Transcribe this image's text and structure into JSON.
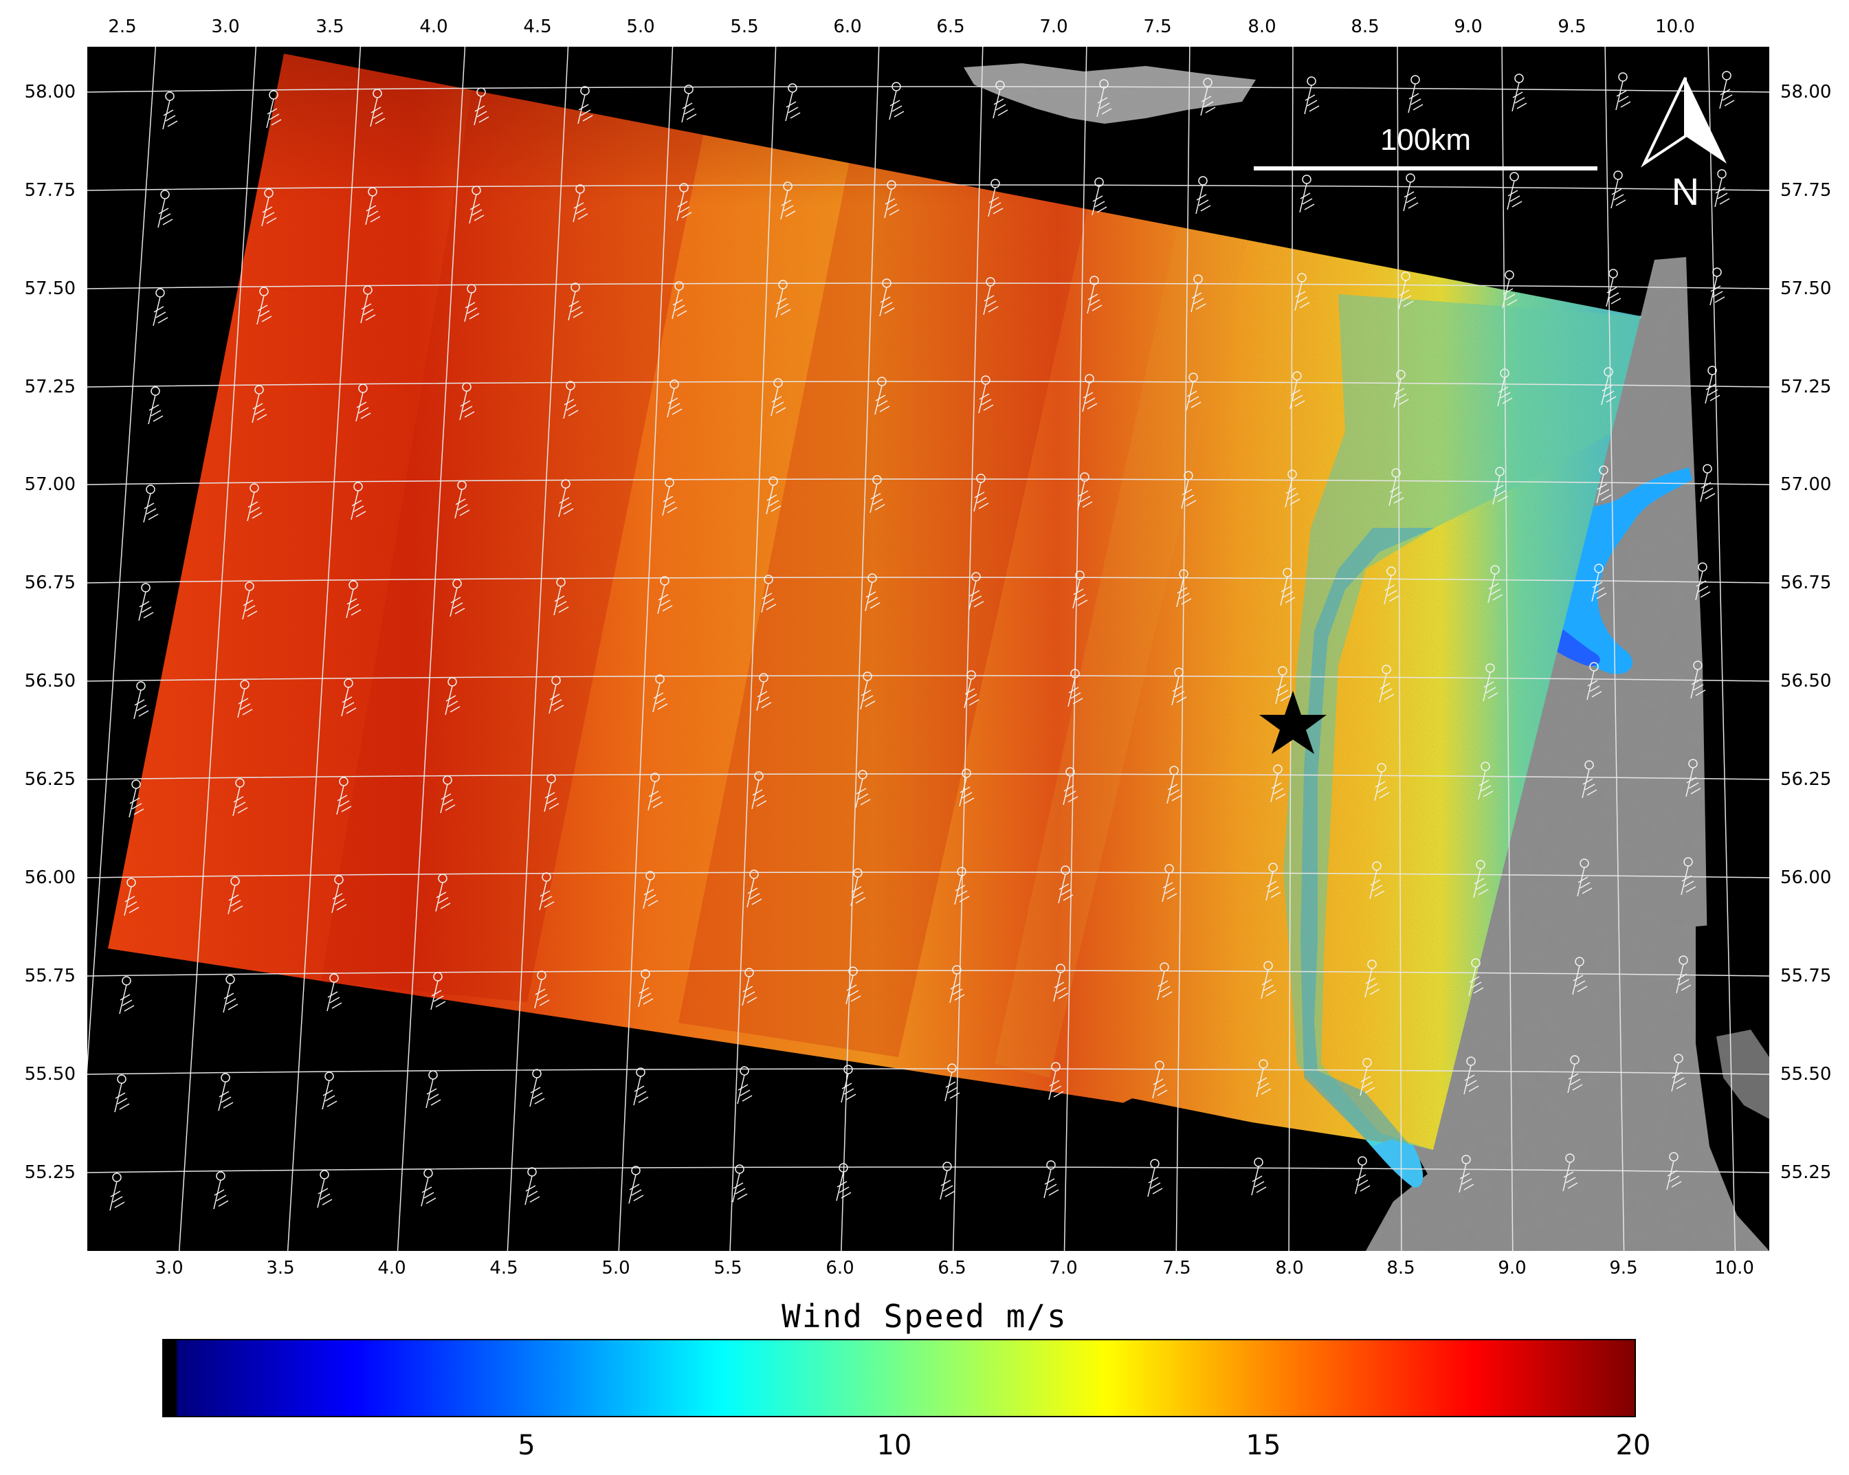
{
  "figure": {
    "top_lon_ticks": [
      "2.5",
      "3.0",
      "3.5",
      "4.0",
      "4.5",
      "5.0",
      "5.5",
      "6.0",
      "6.5",
      "7.0",
      "7.5",
      "8.0",
      "8.5",
      "9.0",
      "9.5",
      "10.0"
    ],
    "bottom_lon_ticks": [
      "3.0",
      "3.5",
      "4.0",
      "4.5",
      "5.0",
      "5.5",
      "6.0",
      "6.5",
      "7.0",
      "7.5",
      "8.0",
      "8.5",
      "9.0",
      "9.5",
      "10.0"
    ],
    "lat_ticks": [
      "58.00",
      "57.75",
      "57.50",
      "57.25",
      "57.00",
      "56.75",
      "56.50",
      "56.25",
      "56.00",
      "55.75",
      "55.50",
      "55.25"
    ],
    "scale_bar_label": "100km",
    "north_label": "N",
    "colorbar": {
      "title": "Wind Speed m/s",
      "tick_labels": [
        "5",
        "10",
        "15",
        "20"
      ],
      "range": [
        0,
        20
      ],
      "colors": [
        "#00007f",
        "#0000ff",
        "#0080ff",
        "#00ffff",
        "#7fff80",
        "#ffff00",
        "#ff8000",
        "#ff0000",
        "#7f0000"
      ]
    },
    "land_color": "#8a8a8a",
    "background_color": "#000000",
    "marker": "star"
  }
}
